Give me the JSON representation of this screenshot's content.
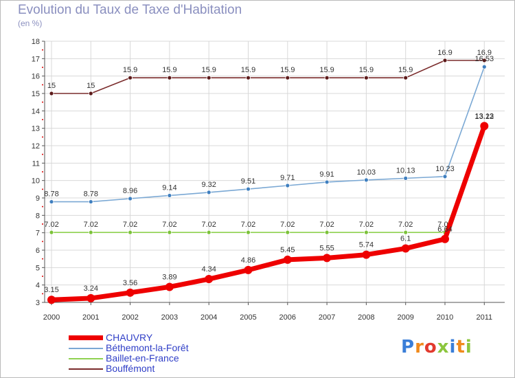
{
  "title": "Evolution du Taux de Taxe d'Habitation",
  "subtitle": "(en %)",
  "logo_text": "Proxiti",
  "chart_data": {
    "type": "line",
    "x": [
      "2000",
      "2001",
      "2002",
      "2003",
      "2004",
      "2005",
      "2006",
      "2007",
      "2008",
      "2009",
      "2010",
      "2011"
    ],
    "ylim": [
      3,
      18
    ],
    "yticks": [
      "3",
      "4",
      "5",
      "6",
      "7",
      "8",
      "9",
      "10",
      "11",
      "12",
      "13",
      "14",
      "15",
      "16",
      "17",
      "18"
    ],
    "grid": true,
    "legend_placement": "bottom-left",
    "series": [
      {
        "name": "Bouffémont",
        "color": "#7a2b2b",
        "point_color": "#5c1a1a",
        "values": [
          15,
          15,
          15.9,
          15.9,
          15.9,
          15.9,
          15.9,
          15.9,
          15.9,
          15.9,
          16.9,
          16.9
        ],
        "labels": [
          "15",
          "15",
          "15.9",
          "15.9",
          "15.9",
          "15.9",
          "15.9",
          "15.9",
          "15.9",
          "15.9",
          "16.9",
          "16.9"
        ]
      },
      {
        "name": "Béthemont-la-Forêt",
        "color": "#7aa8d4",
        "point_color": "#3f7fbf",
        "values": [
          8.78,
          8.78,
          8.96,
          9.14,
          9.32,
          9.51,
          9.71,
          9.91,
          10.03,
          10.13,
          10.23,
          16.53
        ],
        "labels": [
          "8.78",
          "8.78",
          "8.96",
          "9.14",
          "9.32",
          "9.51",
          "9.71",
          "9.91",
          "10.03",
          "10.13",
          "10.23",
          "16.53"
        ]
      },
      {
        "name": "Baillet-en-France",
        "color": "#8fd14f",
        "point_color": "#7cc23a",
        "values": [
          7.02,
          7.02,
          7.02,
          7.02,
          7.02,
          7.02,
          7.02,
          7.02,
          7.02,
          7.02,
          7.02,
          13.22
        ],
        "labels": [
          "7.02",
          "7.02",
          "7.02",
          "7.02",
          "7.02",
          "7.02",
          "7.02",
          "7.02",
          "7.02",
          "7.02",
          "7.02",
          "13.22"
        ]
      },
      {
        "name": "CHAUVRY",
        "color": "#ee0000",
        "point_color": "#ee0000",
        "values": [
          3.15,
          3.24,
          3.56,
          3.89,
          4.34,
          4.86,
          5.45,
          5.55,
          5.74,
          6.1,
          6.64,
          13.13
        ],
        "labels": [
          "3.15",
          "3.24",
          "3.56",
          "3.89",
          "4.34",
          "4.86",
          "5.45",
          "5.55",
          "5.74",
          "6.1",
          "6.64",
          "13.13"
        ]
      }
    ]
  },
  "legend": [
    {
      "label": "CHAUVRY",
      "color": "#ee0000",
      "text_color": "#2f3ec7"
    },
    {
      "label": "Béthemont-la-Forêt",
      "color": "#7aa8d4",
      "text_color": "#2f3ec7"
    },
    {
      "label": "Baillet-en-France",
      "color": "#8fd14f",
      "text_color": "#2f3ec7"
    },
    {
      "label": "Bouffémont",
      "color": "#7a2b2b",
      "text_color": "#2f3ec7"
    }
  ]
}
